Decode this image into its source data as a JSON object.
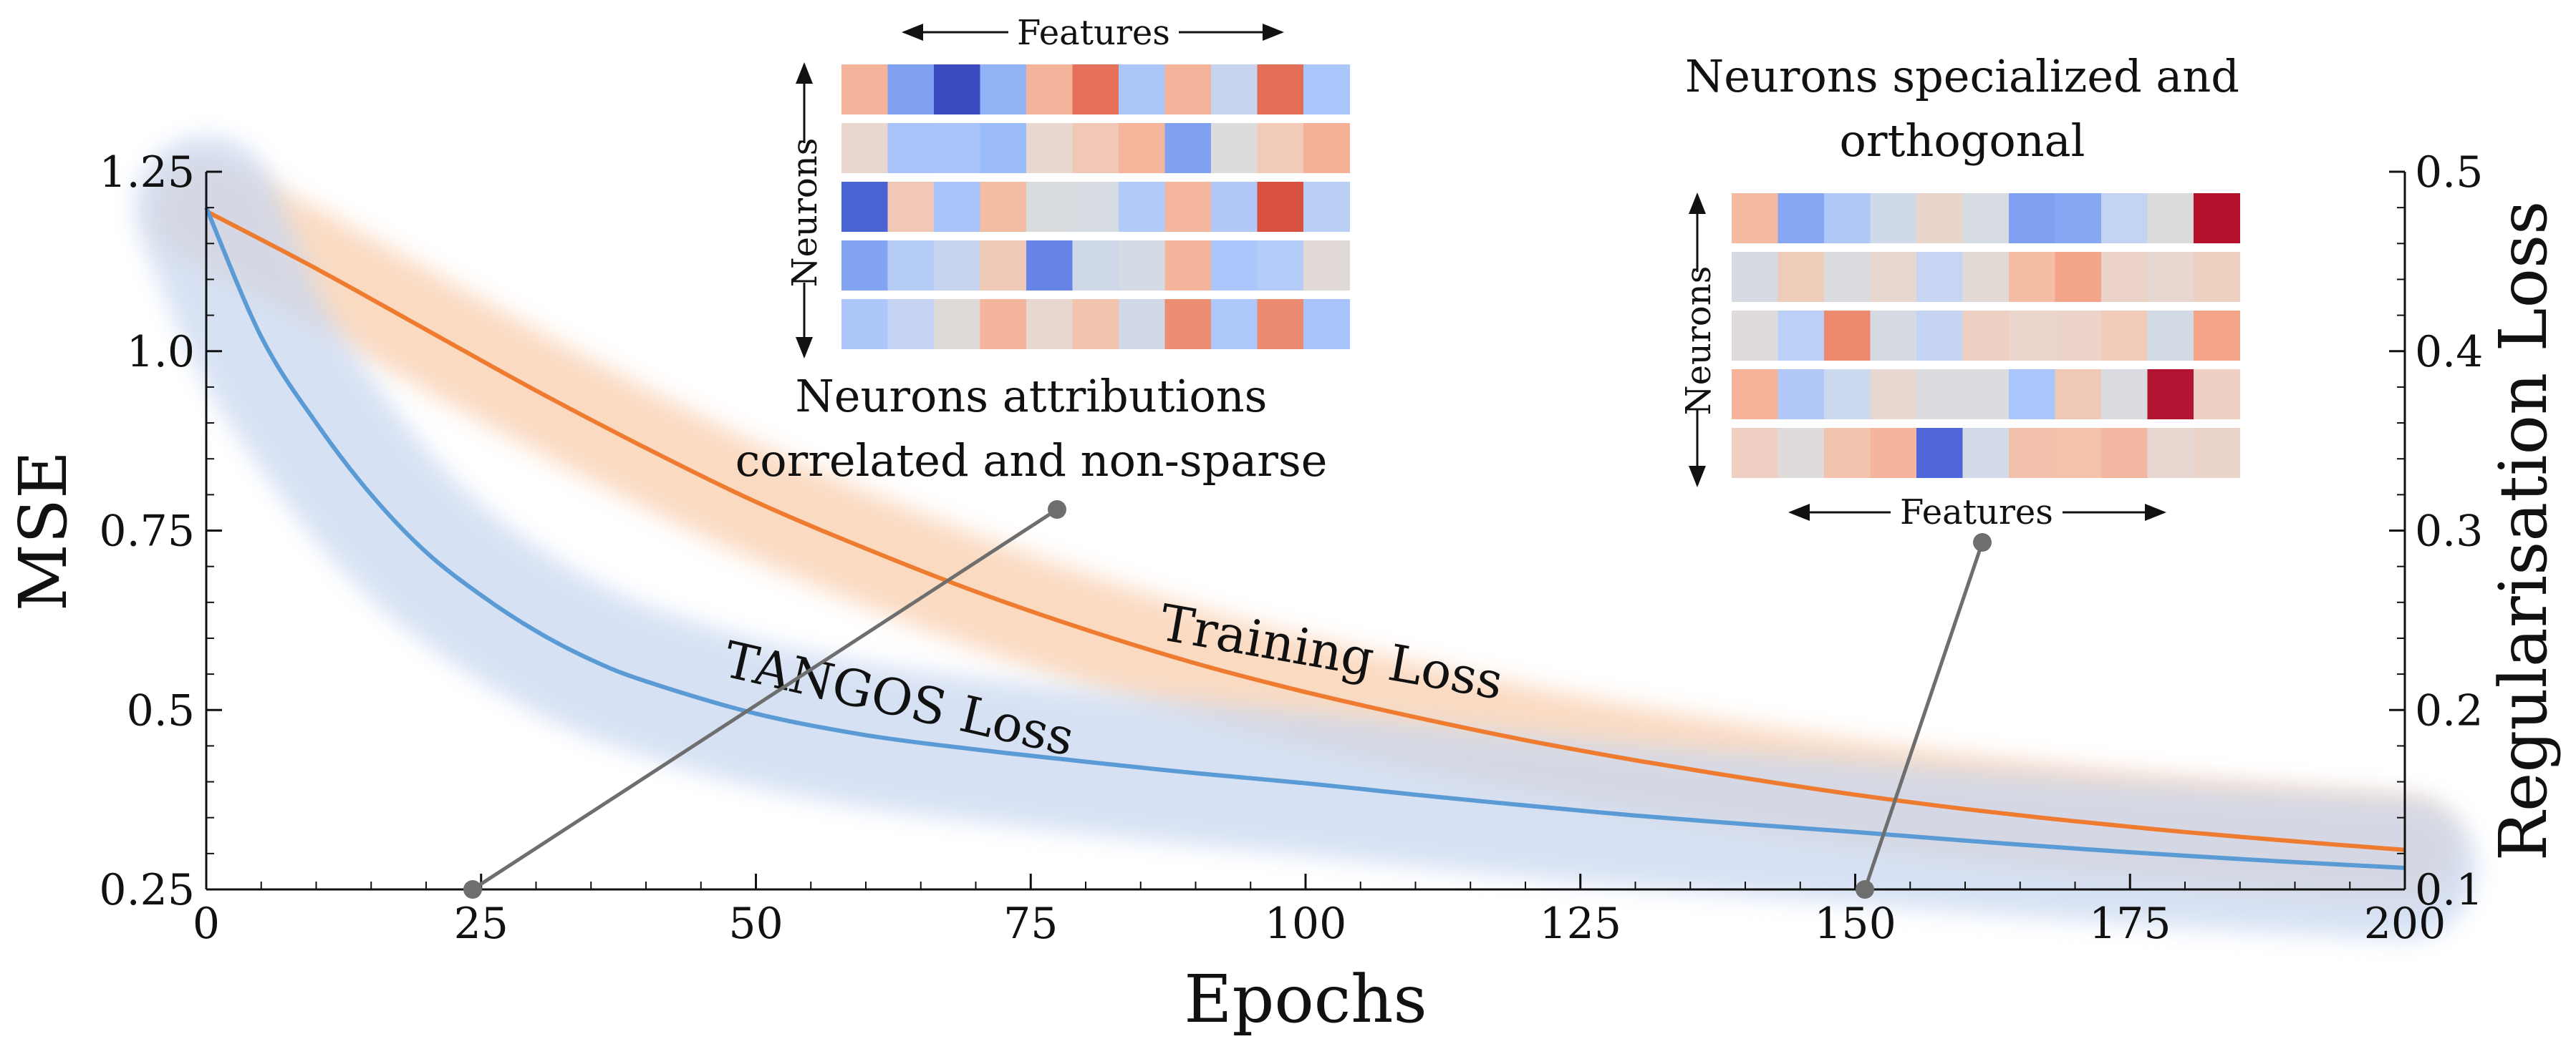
{
  "chart_data": {
    "type": "line",
    "xlabel": "Epochs",
    "ylabel": "MSE",
    "ylabel_right": "Regularisation Loss",
    "xlim": [
      0,
      200
    ],
    "ylim": [
      0.25,
      1.25
    ],
    "ylim_right": [
      0.1,
      0.5
    ],
    "x_ticks": [
      "0",
      "25",
      "50",
      "75",
      "100",
      "125",
      "150",
      "175",
      "200"
    ],
    "y_ticks": [
      "0.25",
      "0.5",
      "0.75",
      "1.0",
      "1.25"
    ],
    "y_ticks_right": [
      "0.1",
      "0.2",
      "0.3",
      "0.4",
      "0.5"
    ],
    "grid": false,
    "series": [
      {
        "name": "Training Loss",
        "axis": "left",
        "color": "#ee7b2f",
        "x": [
          0,
          10,
          20,
          30,
          40,
          50,
          60,
          70,
          80,
          90,
          100,
          110,
          120,
          130,
          140,
          150,
          160,
          170,
          180,
          190,
          200
        ],
        "y": [
          1.195,
          1.115,
          1.03,
          0.945,
          0.865,
          0.79,
          0.725,
          0.665,
          0.612,
          0.565,
          0.525,
          0.49,
          0.458,
          0.43,
          0.405,
          0.382,
          0.362,
          0.345,
          0.33,
          0.317,
          0.305
        ]
      },
      {
        "name": "TANGOS Loss",
        "axis": "left",
        "color": "#5b9bd5",
        "x": [
          0,
          5,
          10,
          15,
          20,
          25,
          30,
          35,
          40,
          50,
          60,
          70,
          80,
          90,
          100,
          110,
          120,
          130,
          140,
          150,
          160,
          170,
          180,
          190,
          200
        ],
        "y": [
          1.2,
          1.02,
          0.9,
          0.8,
          0.72,
          0.66,
          0.61,
          0.57,
          0.54,
          0.495,
          0.465,
          0.445,
          0.428,
          0.412,
          0.398,
          0.382,
          0.367,
          0.353,
          0.341,
          0.33,
          0.318,
          0.307,
          0.297,
          0.288,
          0.28
        ]
      }
    ],
    "annotations": [
      {
        "text_lines": [
          "Neurons attributions",
          "correlated and non-sparse"
        ],
        "points_to_x": 24
      },
      {
        "text_lines": [
          "Neurons specialized and",
          "orthogonal"
        ],
        "points_to_x": 150
      }
    ],
    "insets": [
      {
        "side": "left",
        "axis_row": "Neurons",
        "axis_col": "Features",
        "colors": [
          [
            "#f4b49c",
            "#7f9ff0",
            "#3c4cc0",
            "#92b4f7",
            "#f4b49c",
            "#e5715a",
            "#aac6f7",
            "#f2b39a",
            "#c8d4ef",
            "#e16e55",
            "#aac7fb"
          ],
          [
            "#e9d7cf",
            "#a7c3fa",
            "#a8c4fb",
            "#9bbcf8",
            "#e8d8d0",
            "#f1c8b5",
            "#f5b69c",
            "#7fa1ef",
            "#dddcdc",
            "#f1cbb8",
            "#f5b198"
          ],
          [
            "#4b64d4",
            "#f0c8b5",
            "#a9c4fa",
            "#f3bda3",
            "#d9dcdf",
            "#d7dce2",
            "#b2cbfa",
            "#f4b69d",
            "#b2c9f7",
            "#d8503e",
            "#b9cff6"
          ],
          [
            "#83a5f1",
            "#b6cdf7",
            "#c6d4ef",
            "#efcab7",
            "#6685e6",
            "#cfd8e7",
            "#d4dbe5",
            "#f4b59c",
            "#aac6fb",
            "#b5cbf8",
            "#e2dad7"
          ],
          [
            "#aec7fa",
            "#c5d4f3",
            "#dfdad8",
            "#f3b59c",
            "#e6d8d1",
            "#f2c4ae",
            "#d2d9e6",
            "#ec8e73",
            "#afc8fb",
            "#eb8b70",
            "#a8c4fb"
          ]
        ]
      },
      {
        "side": "right",
        "axis_row": "Neurons",
        "axis_col": "Features",
        "colors": [
          [
            "#f4bba2",
            "#86a8f3",
            "#afc8f8",
            "#d0d9e9",
            "#e9d5cc",
            "#d7dbe2",
            "#7f9ff0",
            "#87a9f3",
            "#c3d3f3",
            "#dcdbdb",
            "#b2102b"
          ],
          [
            "#d6dbe3",
            "#efcbb9",
            "#dbdcdf",
            "#e8d7cf",
            "#c8d5f2",
            "#e3dad6",
            "#f4bda4",
            "#f3a589",
            "#ebd3c7",
            "#e6d8d1",
            "#eed0c1"
          ],
          [
            "#dfdbda",
            "#bccff6",
            "#ed8a6e",
            "#d6dbe3",
            "#c5d4f3",
            "#eed0c2",
            "#ead6cd",
            "#ecd4c9",
            "#f0cbb9",
            "#d2dae6",
            "#f4a487"
          ],
          [
            "#f5b39a",
            "#b1c8f9",
            "#cdd9ee",
            "#e7d8d1",
            "#dbdcdf",
            "#dbdcdf",
            "#a9c5fa",
            "#f0c9b6",
            "#d9dbe1",
            "#b21431",
            "#eed1c3"
          ],
          [
            "#efcfc1",
            "#dfdbda",
            "#f2c3ad",
            "#f5b59c",
            "#4e66d7",
            "#d3dbe8",
            "#f2c1ab",
            "#f3c2ab",
            "#f3b6a0",
            "#e7d7d0",
            "#ead3c8"
          ]
        ]
      }
    ]
  }
}
